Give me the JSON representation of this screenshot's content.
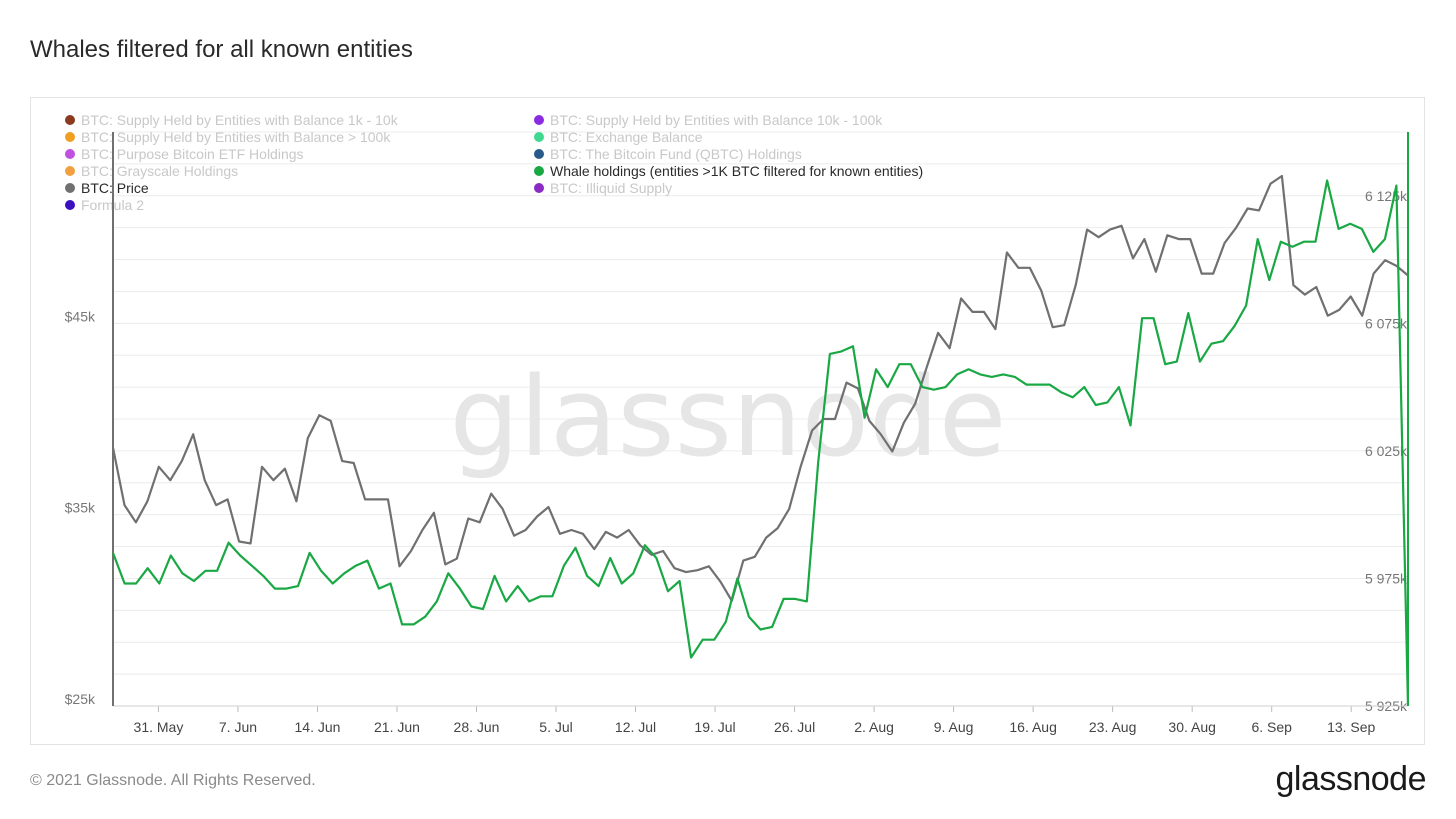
{
  "header": {
    "title": "Whales filtered for all known entities"
  },
  "footer": {
    "copyright": "© 2021 Glassnode. All Rights Reserved.",
    "logo_text": "glassnode"
  },
  "watermark": "glassnode",
  "chart_data": {
    "type": "line",
    "legend": [
      {
        "name": "BTC: Supply Held by Entities with Balance 1k - 10k",
        "color": "#8b3a1e",
        "active": false
      },
      {
        "name": "BTC: Supply Held by Entities with Balance 10k - 100k",
        "color": "#8a2be2",
        "active": false
      },
      {
        "name": "BTC: Supply Held by Entities with Balance > 100k",
        "color": "#f0a020",
        "active": false
      },
      {
        "name": "BTC: Exchange Balance",
        "color": "#40d890",
        "active": false
      },
      {
        "name": "BTC: Purpose Bitcoin ETF Holdings",
        "color": "#c050e0",
        "active": false
      },
      {
        "name": "BTC: The Bitcoin Fund (QBTC) Holdings",
        "color": "#2a5a8a",
        "active": false
      },
      {
        "name": "BTC: Grayscale Holdings",
        "color": "#f0a040",
        "active": false
      },
      {
        "name": "Whale holdings (entities >1K BTC filtered for known entities)",
        "color": "#1aa845",
        "active": true
      },
      {
        "name": "BTC: Price",
        "color": "#707070",
        "active": true
      },
      {
        "name": "BTC: Illiquid Supply",
        "color": "#8a2bc2",
        "active": false
      },
      {
        "name": "Formula 2",
        "color": "#3a10c0",
        "active": false
      }
    ],
    "x_ticks": [
      "31. May",
      "7. Jun",
      "14. Jun",
      "21. Jun",
      "28. Jun",
      "5. Jul",
      "12. Jul",
      "19. Jul",
      "26. Jul",
      "2. Aug",
      "9. Aug",
      "16. Aug",
      "23. Aug",
      "30. Aug",
      "6. Sep",
      "13. Sep"
    ],
    "x_start": "2021-05-27",
    "x_end": "2021-09-18",
    "y_left": {
      "ticks": [
        "$25k",
        "$35k",
        "$45k"
      ],
      "values": [
        25000,
        35000,
        45000
      ],
      "range": [
        25000,
        55000
      ]
    },
    "y_right": {
      "ticks": [
        "5 925k",
        "5 975k",
        "6 025k",
        "6 075k",
        "6 125k"
      ],
      "values": [
        5925000,
        5975000,
        6025000,
        6075000,
        6125000
      ],
      "range": [
        5925000,
        6150000
      ]
    },
    "series": [
      {
        "name": "BTC: Price",
        "axis": "left",
        "color": "#707070",
        "values": [
          38500,
          35500,
          34600,
          35700,
          37500,
          36800,
          37800,
          39200,
          36800,
          35500,
          35800,
          33600,
          33500,
          37500,
          36800,
          37400,
          35700,
          39000,
          40200,
          39900,
          37800,
          37700,
          35800,
          35800,
          35800,
          32300,
          33100,
          34200,
          35100,
          32400,
          32700,
          34800,
          34600,
          36100,
          35300,
          33900,
          34200,
          34900,
          35400,
          34000,
          34200,
          34000,
          33200,
          34100,
          33800,
          34200,
          33400,
          32900,
          33100,
          32200,
          32000,
          32100,
          32300,
          31500,
          30500,
          32600,
          32800,
          33800,
          34300,
          35300,
          37500,
          39400,
          40000,
          40000,
          41900,
          41600,
          39900,
          39200,
          38300,
          39800,
          40800,
          42700,
          44500,
          43700,
          46300,
          45600,
          45600,
          44700,
          48700,
          47900,
          47900,
          46700,
          44800,
          44900,
          47000,
          49900,
          49500,
          49900,
          50100,
          48400,
          49400,
          47700,
          49600,
          49400,
          49400,
          47600,
          47600,
          49200,
          50000,
          51000,
          50900,
          52300,
          52700,
          47000,
          46500,
          46900,
          45400,
          45700,
          46400,
          45400,
          47600,
          48300,
          48000,
          47500
        ]
      },
      {
        "name": "Whale holdings (entities >1K BTC filtered for known entities)",
        "axis": "right",
        "color": "#1aa845",
        "values": [
          5985000,
          5973000,
          5973000,
          5979000,
          5973000,
          5984000,
          5977000,
          5974000,
          5978000,
          5978000,
          5989000,
          5984000,
          5980000,
          5976000,
          5971000,
          5971000,
          5972000,
          5985000,
          5978000,
          5973000,
          5977000,
          5980000,
          5982000,
          5971000,
          5973000,
          5957000,
          5957000,
          5960000,
          5966000,
          5977000,
          5971000,
          5964000,
          5963000,
          5976000,
          5966000,
          5972000,
          5966000,
          5968000,
          5968000,
          5980000,
          5987000,
          5976000,
          5972000,
          5983000,
          5973000,
          5977000,
          5988000,
          5983000,
          5970000,
          5974000,
          5944000,
          5951000,
          5951000,
          5958000,
          5975000,
          5960000,
          5955000,
          5956000,
          5967000,
          5967000,
          5966000,
          6021000,
          6063000,
          6064000,
          6066000,
          6038000,
          6057000,
          6050000,
          6059000,
          6059000,
          6050000,
          6049000,
          6050000,
          6055000,
          6057000,
          6055000,
          6054000,
          6055000,
          6054000,
          6051000,
          6051000,
          6051000,
          6048000,
          6046000,
          6050000,
          6043000,
          6044000,
          6050000,
          6035000,
          6077000,
          6077000,
          6059000,
          6060000,
          6079000,
          6060000,
          6067000,
          6068000,
          6074000,
          6082000,
          6108000,
          6092000,
          6107000,
          6105000,
          6107000,
          6107000,
          6131000,
          6112000,
          6114000,
          6112000,
          6103000,
          6108000,
          6129000,
          5925000
        ]
      }
    ]
  }
}
